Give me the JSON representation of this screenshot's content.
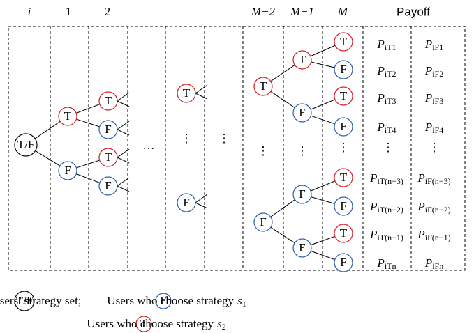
{
  "headers": [
    "i",
    "1",
    "2",
    "M−2",
    "M−1",
    "M",
    "Payoff"
  ],
  "nodes": [
    {
      "label": "T/F"
    },
    {
      "label": "T"
    },
    {
      "label": "F"
    },
    {
      "label": "T"
    },
    {
      "label": "F"
    },
    {
      "label": "T"
    },
    {
      "label": "F"
    },
    {
      "label": "T"
    },
    {
      "label": "F"
    },
    {
      "label": "T"
    },
    {
      "label": "F"
    },
    {
      "label": "T"
    },
    {
      "label": "F"
    },
    {
      "label": "F"
    },
    {
      "label": "F"
    },
    {
      "label": "T"
    },
    {
      "label": "F"
    },
    {
      "label": "T"
    },
    {
      "label": "F"
    },
    {
      "label": "T"
    },
    {
      "label": "F"
    },
    {
      "label": "T"
    },
    {
      "label": "F"
    }
  ],
  "ellipsis": {
    "horizontal": "…",
    "vertical": "⋮"
  },
  "payoff": {
    "symbol": "P",
    "rows": [
      {
        "t": "iT1",
        "f": "iF1"
      },
      {
        "t": "iT2",
        "f": "iF2"
      },
      {
        "t": "iT3",
        "f": "iF3"
      },
      {
        "t": "iT4",
        "f": "iF4"
      },
      {
        "t": "iT(n−3)",
        "f": "iF(n−3)"
      },
      {
        "t": "iT(n−2)",
        "f": "iF(n−2)"
      },
      {
        "t": "iT(n−1)",
        "f": "iF(n−1)"
      },
      {
        "t": "iTn",
        "f": "iFn"
      }
    ]
  },
  "legend": [
    {
      "symbol": "T/F",
      "text": "Users’ strategy set;"
    },
    {
      "symbol": "F",
      "text": "Users who choose strategy",
      "var": "s",
      "sub": "1"
    },
    {
      "symbol": "T",
      "text": "Users who choose strategy",
      "var": "s",
      "sub": "2"
    }
  ]
}
